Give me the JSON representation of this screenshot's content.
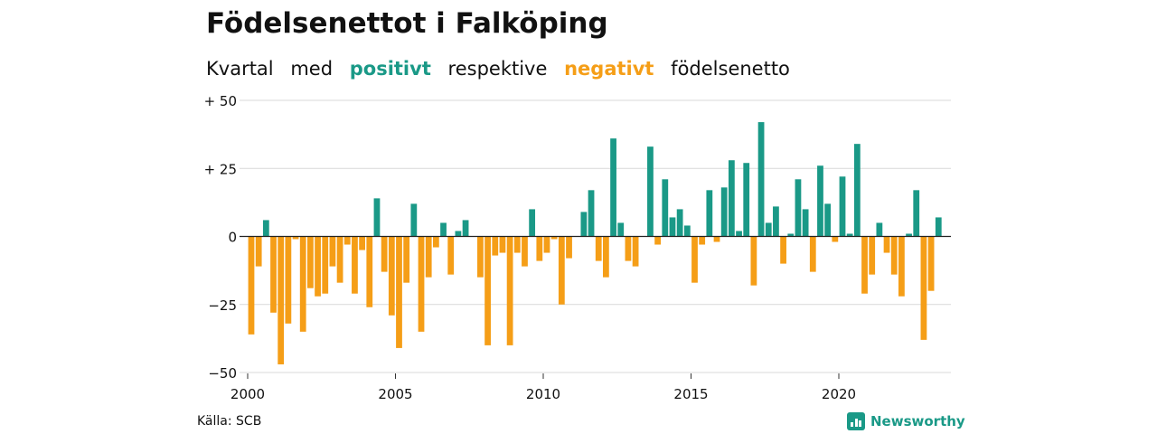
{
  "title": "Födelsenettot i Falköping",
  "subtitle": {
    "prefix": "Kvartal",
    "word2": "med",
    "positive_word": "positivt",
    "middle": "respektive",
    "negative_word": "negativt",
    "suffix": "födelsenetto"
  },
  "source": "Källa: SCB",
  "brand": {
    "name": "Newsworthy",
    "icon": "newsworthy-logo-icon"
  },
  "colors": {
    "positive": "#1a9987",
    "negative": "#f59e17",
    "grid": "#d9d9d9",
    "text": "#111111"
  },
  "chart_data": {
    "type": "bar",
    "x_unit": "quarter",
    "start": "2000 Q1",
    "ylim": [
      -50,
      50
    ],
    "y_ticks": [
      50,
      25,
      0,
      -25,
      -50
    ],
    "y_tick_labels": [
      "+ 50",
      "+ 25",
      "0",
      "−25",
      "−50"
    ],
    "x_ticks": [
      2000,
      2005,
      2010,
      2015,
      2020
    ],
    "x_tick_labels": [
      "2000",
      "2005",
      "2010",
      "2015",
      "2020"
    ],
    "values": [
      -36,
      -11,
      6,
      -28,
      -47,
      -32,
      -1,
      -35,
      -19,
      -22,
      -21,
      -11,
      -17,
      -3,
      -21,
      -5,
      -26,
      14,
      -13,
      -29,
      -41,
      -17,
      12,
      -35,
      -15,
      -4,
      5,
      -14,
      2,
      6,
      0,
      -15,
      -40,
      -7,
      -6,
      -40,
      -6,
      -11,
      10,
      -9,
      -6,
      -1,
      -25,
      -8,
      0,
      9,
      17,
      -9,
      -15,
      36,
      5,
      -9,
      -11,
      0,
      33,
      -3,
      21,
      7,
      10,
      4,
      -17,
      -3,
      17,
      -2,
      18,
      28,
      2,
      27,
      -18,
      42,
      5,
      11,
      -10,
      1,
      21,
      10,
      -13,
      26,
      12,
      -2,
      22,
      1,
      34,
      -21,
      -14,
      5,
      -6,
      -14,
      -22,
      1,
      17,
      -38,
      -20,
      7
    ]
  }
}
